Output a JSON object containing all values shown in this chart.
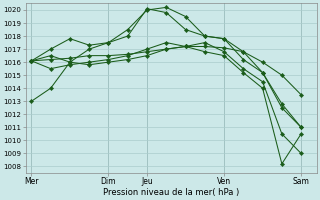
{
  "xlabel": "Pression niveau de la mer( hPa )",
  "ylim": [
    1007.5,
    1020.5
  ],
  "yticks": [
    1008,
    1009,
    1010,
    1011,
    1012,
    1013,
    1014,
    1015,
    1016,
    1017,
    1018,
    1019,
    1020
  ],
  "background_color": "#cce8e8",
  "grid_color": "#aacccc",
  "line_color": "#1a5c1a",
  "marker_color": "#1a5c1a",
  "vline_color": "#7a9a9a",
  "xtick_labels": [
    "Mer",
    "Dim",
    "Jeu",
    "Ven",
    "Sam"
  ],
  "xtick_positions": [
    0,
    4,
    6,
    10,
    14
  ],
  "xlim": [
    -0.3,
    14.8
  ],
  "series": [
    {
      "x": [
        0,
        1,
        2,
        3,
        4,
        5,
        6,
        7,
        8,
        9,
        10,
        11,
        12,
        13,
        14
      ],
      "y": [
        1013,
        1014,
        1016,
        1017,
        1017.5,
        1018.5,
        1020,
        1020.2,
        1019.5,
        1018,
        1017.8,
        1016.8,
        1015.2,
        1012.5,
        1011
      ]
    },
    {
      "x": [
        0,
        1,
        2,
        3,
        4,
        5,
        6,
        7,
        8,
        9,
        10,
        11,
        12,
        13,
        14
      ],
      "y": [
        1016.1,
        1016.2,
        1016.3,
        1016.5,
        1016.5,
        1016.6,
        1016.8,
        1017.0,
        1017.2,
        1017.2,
        1017.1,
        1016.8,
        1016.0,
        1015.0,
        1013.5
      ]
    },
    {
      "x": [
        0,
        1,
        2,
        3,
        4,
        5,
        6,
        7,
        8,
        9,
        10,
        11,
        12,
        13,
        14
      ],
      "y": [
        1016.1,
        1017.0,
        1017.8,
        1017.3,
        1017.5,
        1018.0,
        1020.1,
        1019.8,
        1018.5,
        1018.0,
        1017.8,
        1016.2,
        1015.2,
        1012.8,
        1011
      ]
    },
    {
      "x": [
        0,
        1,
        2,
        3,
        4,
        5,
        6,
        7,
        8,
        9,
        10,
        11,
        12,
        13,
        14
      ],
      "y": [
        1016.1,
        1016.5,
        1016.0,
        1015.8,
        1016.0,
        1016.2,
        1016.5,
        1017.0,
        1017.2,
        1017.5,
        1016.8,
        1015.5,
        1014.5,
        1010.5,
        1009
      ]
    },
    {
      "x": [
        0,
        1,
        2,
        3,
        4,
        5,
        6,
        7,
        8,
        9,
        10,
        11,
        12,
        13,
        14
      ],
      "y": [
        1016.1,
        1015.5,
        1015.8,
        1016.0,
        1016.2,
        1016.5,
        1017.0,
        1017.5,
        1017.2,
        1016.8,
        1016.5,
        1015.2,
        1014.0,
        1008.2,
        1010.5
      ]
    }
  ]
}
